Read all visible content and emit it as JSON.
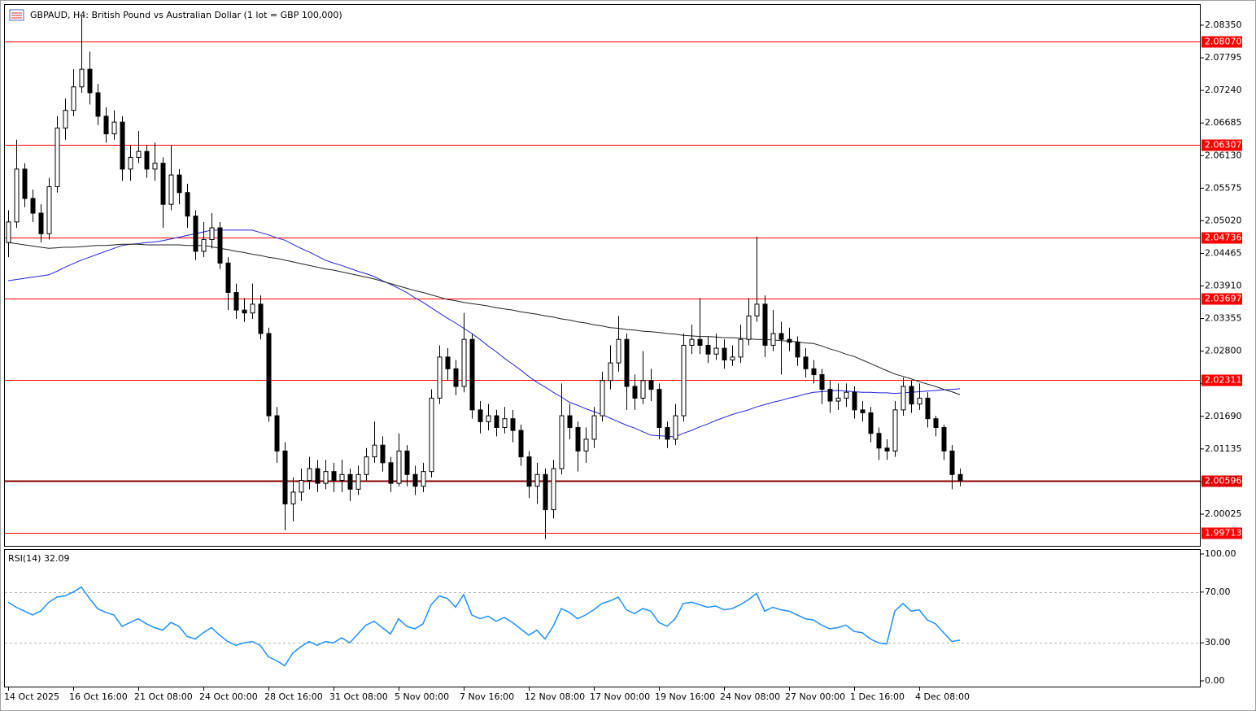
{
  "chart_data": [
    {
      "type": "candlestick",
      "title": "GBPAUD, H4:  British Pound vs Australian Dollar (1 lot = GBP 100,000)",
      "categories": [
        "14 Oct 2025",
        null,
        null,
        null,
        null,
        null,
        null,
        null,
        "16 Oct 16:00",
        null,
        null,
        null,
        null,
        null,
        null,
        null,
        "21 Oct 08:00",
        null,
        null,
        null,
        null,
        null,
        null,
        null,
        "24 Oct 00:00",
        null,
        null,
        null,
        null,
        null,
        null,
        null,
        "28 Oct 16:00",
        null,
        null,
        null,
        null,
        null,
        null,
        null,
        "31 Oct 08:00",
        null,
        null,
        null,
        null,
        null,
        null,
        null,
        "5 Nov 00:00",
        null,
        null,
        null,
        null,
        null,
        null,
        null,
        "7 Nov 16:00",
        null,
        null,
        null,
        null,
        null,
        null,
        null,
        "12 Nov 08:00",
        null,
        null,
        null,
        null,
        null,
        null,
        null,
        "17 Nov 00:00",
        null,
        null,
        null,
        null,
        null,
        null,
        null,
        "19 Nov 16:00",
        null,
        null,
        null,
        null,
        null,
        null,
        null,
        "24 Nov 08:00",
        null,
        null,
        null,
        null,
        null,
        null,
        null,
        "27 Nov 00:00",
        null,
        null,
        null,
        null,
        null,
        null,
        null,
        "1 Dec 16:00",
        null,
        null,
        null,
        null,
        null,
        null,
        null,
        "4 Dec 08:00",
        null,
        null,
        null,
        null,
        null
      ],
      "open": [
        2.0465,
        2.05,
        2.059,
        2.054,
        2.0515,
        2.048,
        2.056,
        2.066,
        2.069,
        2.073,
        2.076,
        2.072,
        2.068,
        2.065,
        2.067,
        2.059,
        2.061,
        2.062,
        2.059,
        2.06,
        2.053,
        2.058,
        2.055,
        2.051,
        2.045,
        2.047,
        2.049,
        2.043,
        2.038,
        2.035,
        2.0345,
        2.036,
        2.031,
        2.017,
        2.011,
        2.002,
        2.004,
        2.006,
        2.008,
        2.0055,
        2.0075,
        2.006,
        2.007,
        2.0045,
        2.007,
        2.01,
        2.012,
        2.009,
        2.0055,
        2.011,
        2.007,
        2.005,
        2.0075,
        2.02,
        2.027,
        2.025,
        2.022,
        2.03,
        2.018,
        2.016,
        2.017,
        2.015,
        2.0165,
        2.0145,
        2.01,
        2.005,
        2.007,
        2.001,
        2.008,
        2.017,
        2.015,
        2.011,
        2.013,
        2.017,
        2.023,
        2.026,
        2.03,
        2.022,
        2.02,
        2.023,
        2.0215,
        2.015,
        2.013,
        2.017,
        2.029,
        2.03,
        2.029,
        2.0275,
        2.0285,
        2.0265,
        2.027,
        2.03,
        2.034,
        2.036,
        2.029,
        2.031,
        2.03,
        2.0295,
        2.027,
        2.025,
        2.024,
        2.0215,
        2.0195,
        2.02,
        2.021,
        2.018,
        2.0175,
        2.014,
        2.0115,
        2.011,
        2.018,
        2.022,
        2.019,
        2.02,
        2.0165,
        2.015,
        2.011,
        2.007
      ],
      "close": [
        2.05,
        2.059,
        2.054,
        2.0515,
        2.048,
        2.056,
        2.066,
        2.069,
        2.073,
        2.076,
        2.072,
        2.068,
        2.065,
        2.067,
        2.059,
        2.061,
        2.062,
        2.059,
        2.06,
        2.053,
        2.058,
        2.055,
        2.051,
        2.045,
        2.047,
        2.049,
        2.043,
        2.038,
        2.035,
        2.0345,
        2.036,
        2.031,
        2.017,
        2.011,
        2.002,
        2.004,
        2.006,
        2.008,
        2.0055,
        2.0075,
        2.006,
        2.007,
        2.0045,
        2.007,
        2.01,
        2.012,
        2.009,
        2.0055,
        2.011,
        2.007,
        2.005,
        2.0075,
        2.02,
        2.027,
        2.025,
        2.022,
        2.03,
        2.018,
        2.016,
        2.017,
        2.015,
        2.0165,
        2.0145,
        2.01,
        2.005,
        2.007,
        2.001,
        2.008,
        2.017,
        2.015,
        2.011,
        2.013,
        2.017,
        2.023,
        2.026,
        2.03,
        2.022,
        2.02,
        2.023,
        2.0215,
        2.015,
        2.013,
        2.017,
        2.029,
        2.03,
        2.029,
        2.0275,
        2.0285,
        2.0265,
        2.027,
        2.03,
        2.034,
        2.036,
        2.029,
        2.031,
        2.03,
        2.0295,
        2.027,
        2.025,
        2.024,
        2.0215,
        2.0195,
        2.02,
        2.021,
        2.018,
        2.0175,
        2.014,
        2.0115,
        2.011,
        2.018,
        2.022,
        2.019,
        2.02,
        2.0165,
        2.015,
        2.011,
        2.007,
        2.006
      ],
      "high": [
        2.052,
        2.064,
        2.06,
        2.0555,
        2.053,
        2.0575,
        2.068,
        2.071,
        2.076,
        2.085,
        2.079,
        2.0735,
        2.0695,
        2.069,
        2.068,
        2.063,
        2.0655,
        2.063,
        2.0635,
        2.061,
        2.063,
        2.059,
        2.0565,
        2.052,
        2.05,
        2.0515,
        2.05,
        2.044,
        2.0395,
        2.037,
        2.0395,
        2.0375,
        2.032,
        2.0185,
        2.0125,
        2.0065,
        2.008,
        2.01,
        2.0095,
        2.0095,
        2.009,
        2.0095,
        2.008,
        2.0085,
        2.0115,
        2.016,
        2.0135,
        2.01,
        2.014,
        2.012,
        2.0085,
        2.009,
        2.0215,
        2.029,
        2.0285,
        2.0265,
        2.0345,
        2.031,
        2.0195,
        2.019,
        2.018,
        2.0185,
        2.018,
        2.0155,
        2.011,
        2.009,
        2.008,
        2.0095,
        2.0225,
        2.019,
        2.016,
        2.015,
        2.0185,
        2.0245,
        2.029,
        2.034,
        2.031,
        2.024,
        2.028,
        2.025,
        2.0225,
        2.016,
        2.019,
        2.031,
        2.0325,
        2.037,
        2.0305,
        2.031,
        2.03,
        2.029,
        2.0325,
        2.037,
        2.0475,
        2.0375,
        2.035,
        2.033,
        2.032,
        2.0305,
        2.0285,
        2.0265,
        2.025,
        2.023,
        2.0225,
        2.0225,
        2.022,
        2.0195,
        2.0185,
        2.015,
        2.013,
        2.0195,
        2.0235,
        2.023,
        2.0225,
        2.021,
        2.017,
        2.0155,
        2.012,
        2.008
      ],
      "low": [
        2.044,
        2.049,
        2.0525,
        2.05,
        2.0465,
        2.047,
        2.055,
        2.064,
        2.068,
        2.072,
        2.07,
        2.0665,
        2.0635,
        2.064,
        2.057,
        2.057,
        2.06,
        2.0575,
        2.057,
        2.049,
        2.052,
        2.053,
        2.049,
        2.0435,
        2.044,
        2.0455,
        2.042,
        2.035,
        2.0335,
        2.033,
        2.0335,
        2.03,
        2.016,
        2.009,
        1.9975,
        1.999,
        2.0025,
        2.0045,
        2.004,
        2.0045,
        2.004,
        2.004,
        2.0025,
        2.0035,
        2.006,
        2.009,
        2.0075,
        2.004,
        2.005,
        2.005,
        2.0035,
        2.004,
        2.0065,
        2.019,
        2.023,
        2.0205,
        2.021,
        2.0165,
        2.014,
        2.0145,
        2.0135,
        2.014,
        2.0125,
        2.0085,
        2.003,
        2.002,
        1.996,
        1.9995,
        2.007,
        2.013,
        2.0075,
        2.009,
        2.0115,
        2.016,
        2.0215,
        2.0245,
        2.018,
        2.018,
        2.019,
        2.0195,
        2.013,
        2.0115,
        2.012,
        2.016,
        2.0275,
        2.0275,
        2.026,
        2.0265,
        2.025,
        2.0255,
        2.026,
        2.029,
        2.033,
        2.027,
        2.028,
        2.024,
        2.028,
        2.0255,
        2.0235,
        2.0225,
        2.019,
        2.0175,
        2.018,
        2.0185,
        2.0165,
        2.016,
        2.0125,
        2.0095,
        2.0095,
        2.01,
        2.017,
        2.0175,
        2.018,
        2.015,
        2.0135,
        2.0095,
        2.0045,
        2.005
      ],
      "series": [
        {
          "color": "#2222dd",
          "values": [
            2.04,
            2.0402,
            2.0404,
            2.0406,
            2.0408,
            2.041,
            2.0416,
            2.0423,
            2.0429,
            2.0435,
            2.044,
            2.0445,
            2.045,
            2.0455,
            2.046,
            2.0462,
            2.0463,
            2.0465,
            2.0466,
            2.0468,
            2.0471,
            2.0474,
            2.0477,
            2.048,
            2.0483,
            2.0486,
            2.0486,
            2.0486,
            2.0486,
            2.0486,
            2.0486,
            2.0482,
            2.0478,
            2.0473,
            2.0469,
            2.0462,
            2.0455,
            2.0449,
            2.0442,
            2.0435,
            2.043,
            2.0426,
            2.0421,
            2.0416,
            2.0412,
            2.0407,
            2.04,
            2.0394,
            2.0387,
            2.038,
            2.0371,
            2.0363,
            2.0354,
            2.0345,
            2.0336,
            2.0328,
            2.0319,
            2.031,
            2.03,
            2.0289,
            2.0279,
            2.0268,
            2.0258,
            2.0248,
            2.0237,
            2.0227,
            2.0219,
            2.021,
            2.0202,
            2.0193,
            2.0188,
            2.0182,
            2.0177,
            2.0172,
            2.0166,
            2.016,
            2.0154,
            2.0149,
            2.0143,
            2.0137,
            2.0136,
            2.0135,
            2.0134,
            2.014,
            2.0145,
            2.0151,
            2.0156,
            2.0162,
            2.0167,
            2.0172,
            2.0176,
            2.018,
            2.0185,
            2.0189,
            2.0193,
            2.0196,
            2.02,
            2.0203,
            2.0207,
            2.021,
            2.0211,
            2.0212,
            2.0213,
            2.0212,
            2.0211,
            2.021,
            2.021,
            2.0209,
            2.0209,
            2.0208,
            2.0209,
            2.021,
            2.0211,
            2.0212,
            2.0213,
            2.0214,
            2.0215,
            2.0216
          ]
        },
        {
          "color": "#222222",
          "values": [
            2.0465,
            2.0463,
            2.0461,
            2.0459,
            2.0457,
            2.0455,
            2.0456,
            2.0457,
            2.0457,
            2.0458,
            2.0459,
            2.046,
            2.046,
            2.0461,
            2.0462,
            2.0462,
            2.0462,
            2.0461,
            2.0461,
            2.0461,
            2.0461,
            2.0461,
            2.046,
            2.046,
            2.046,
            2.0458,
            2.0455,
            2.0453,
            2.045,
            2.0448,
            2.0445,
            2.0443,
            2.044,
            2.0438,
            2.0435,
            2.0432,
            2.0429,
            2.0426,
            2.0423,
            2.042,
            2.0418,
            2.0415,
            2.0412,
            2.0409,
            2.0406,
            2.0403,
            2.0399,
            2.0395,
            2.0391,
            2.0387,
            2.0383,
            2.038,
            2.0376,
            2.0372,
            2.0368,
            2.0366,
            2.0363,
            2.0361,
            2.0359,
            2.0357,
            2.0354,
            2.0352,
            2.035,
            2.0347,
            2.0345,
            2.0343,
            2.034,
            2.0338,
            2.0335,
            2.0333,
            2.033,
            2.0328,
            2.0325,
            2.0323,
            2.032,
            2.0319,
            2.0317,
            2.0316,
            2.0314,
            2.0313,
            2.0312,
            2.031,
            2.0309,
            2.0307,
            2.0306,
            2.0305,
            2.0305,
            2.0304,
            2.0303,
            2.0303,
            2.0302,
            2.0301,
            2.03,
            2.03,
            2.0299,
            2.0298,
            2.0297,
            2.0296,
            2.0294,
            2.0293,
            2.0289,
            2.0284,
            2.028,
            2.0275,
            2.0271,
            2.0265,
            2.0259,
            2.0253,
            2.0247,
            2.0241,
            2.0237,
            2.0233,
            2.0228,
            2.0224,
            2.022,
            2.0215,
            2.0211,
            2.0206
          ]
        }
      ],
      "levels": [
        {
          "value": 2.0807,
          "label": "2.08070",
          "color": "#ff0000"
        },
        {
          "value": 2.06307,
          "label": "2.06307",
          "color": "#ff0000"
        },
        {
          "value": 2.04736,
          "label": "2.04736",
          "color": "#ff0000"
        },
        {
          "value": 2.03697,
          "label": "2.03697",
          "color": "#ff0000"
        },
        {
          "value": 2.02311,
          "label": "2.02311",
          "color": "#ff0000"
        },
        {
          "value": 1.99713,
          "label": "1.99713",
          "color": "#ff0000"
        },
        {
          "value": 2.00596,
          "label": "2.00596",
          "color": "#8b0000"
        }
      ],
      "ylim": [
        1.99471,
        2.08696
      ],
      "yticks": [
        {
          "value": 2.0835,
          "label": "2.08350"
        },
        {
          "value": 2.07795,
          "label": "2.07795"
        },
        {
          "value": 2.0724,
          "label": "2.07240"
        },
        {
          "value": 2.06685,
          "label": "2.06685"
        },
        {
          "value": 2.0613,
          "label": "2.06130"
        },
        {
          "value": 2.05575,
          "label": "2.05575"
        },
        {
          "value": 2.0502,
          "label": "2.05020"
        },
        {
          "value": 2.04465,
          "label": "2.04465"
        },
        {
          "value": 2.0391,
          "label": "2.03910"
        },
        {
          "value": 2.03355,
          "label": "2.03355"
        },
        {
          "value": 2.028,
          "label": "2.02800"
        },
        {
          "value": 2.02245,
          "label": "2.02245"
        },
        {
          "value": 2.0169,
          "label": "2.01690"
        },
        {
          "value": 2.01135,
          "label": "2.01135"
        },
        {
          "value": 2.0058,
          "label": "2.00580"
        },
        {
          "value": 2.00025,
          "label": "2.00025"
        }
      ]
    },
    {
      "type": "line",
      "title": "RSI(14) 32.09",
      "color": "#1e90ff",
      "values": [
        62,
        58,
        55,
        52,
        55,
        62,
        66,
        67,
        70,
        74,
        65,
        57,
        54,
        52,
        43,
        46,
        49,
        45,
        42,
        40,
        46,
        43,
        35,
        33,
        38,
        42,
        36,
        31,
        28,
        30,
        31,
        28,
        19,
        16,
        12,
        22,
        27,
        31,
        28,
        31,
        30,
        34,
        30,
        37,
        44,
        47,
        42,
        37,
        49,
        43,
        41,
        45,
        60,
        67,
        65,
        58,
        68,
        52,
        49,
        51,
        47,
        50,
        46,
        41,
        36,
        40,
        33,
        43,
        57,
        54,
        49,
        52,
        56,
        61,
        63,
        66,
        56,
        53,
        57,
        55,
        46,
        43,
        49,
        61,
        62,
        60,
        58,
        59,
        56,
        57,
        60,
        64,
        69,
        55,
        58,
        56,
        55,
        52,
        49,
        48,
        44,
        41,
        42,
        44,
        39,
        38,
        33,
        30,
        29,
        55,
        61,
        55,
        56,
        48,
        45,
        38,
        31,
        32.09
      ],
      "levels": [
        70,
        30
      ],
      "ylim": [
        -5.13,
        103.85
      ],
      "yticks": [
        {
          "value": 100,
          "label": "100.00"
        },
        {
          "value": 70,
          "label": "70.00"
        },
        {
          "value": 30,
          "label": "30.00"
        },
        {
          "value": 0,
          "label": "0.00"
        }
      ]
    }
  ]
}
